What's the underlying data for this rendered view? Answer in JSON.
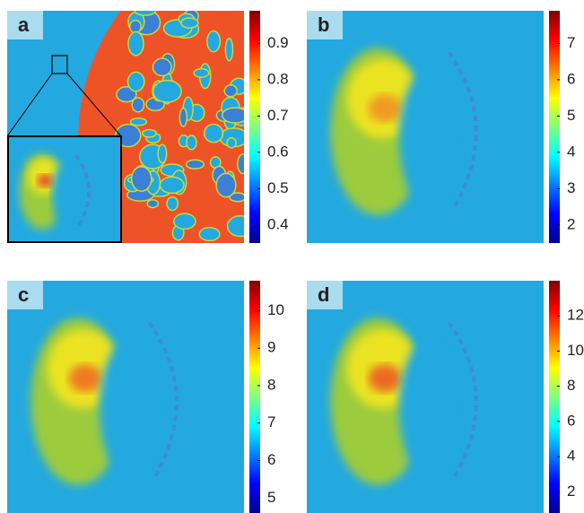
{
  "chart_data": [
    {
      "type": "heatmap",
      "label": "a",
      "clim": [
        0.35,
        0.99
      ],
      "cticks": [
        0.4,
        0.5,
        0.6,
        0.7,
        0.8,
        0.9
      ]
    },
    {
      "type": "heatmap",
      "label": "b",
      "clim": [
        1.5,
        7.9
      ],
      "cticks": [
        2,
        3,
        4,
        5,
        6,
        7
      ]
    },
    {
      "type": "heatmap",
      "label": "c",
      "clim": [
        4.6,
        10.8
      ],
      "cticks": [
        5,
        6,
        7,
        8,
        9,
        10
      ]
    },
    {
      "type": "heatmap",
      "label": "d",
      "clim": [
        0.8,
        14
      ],
      "cticks": [
        2,
        4,
        6,
        8,
        10,
        12
      ]
    }
  ]
}
